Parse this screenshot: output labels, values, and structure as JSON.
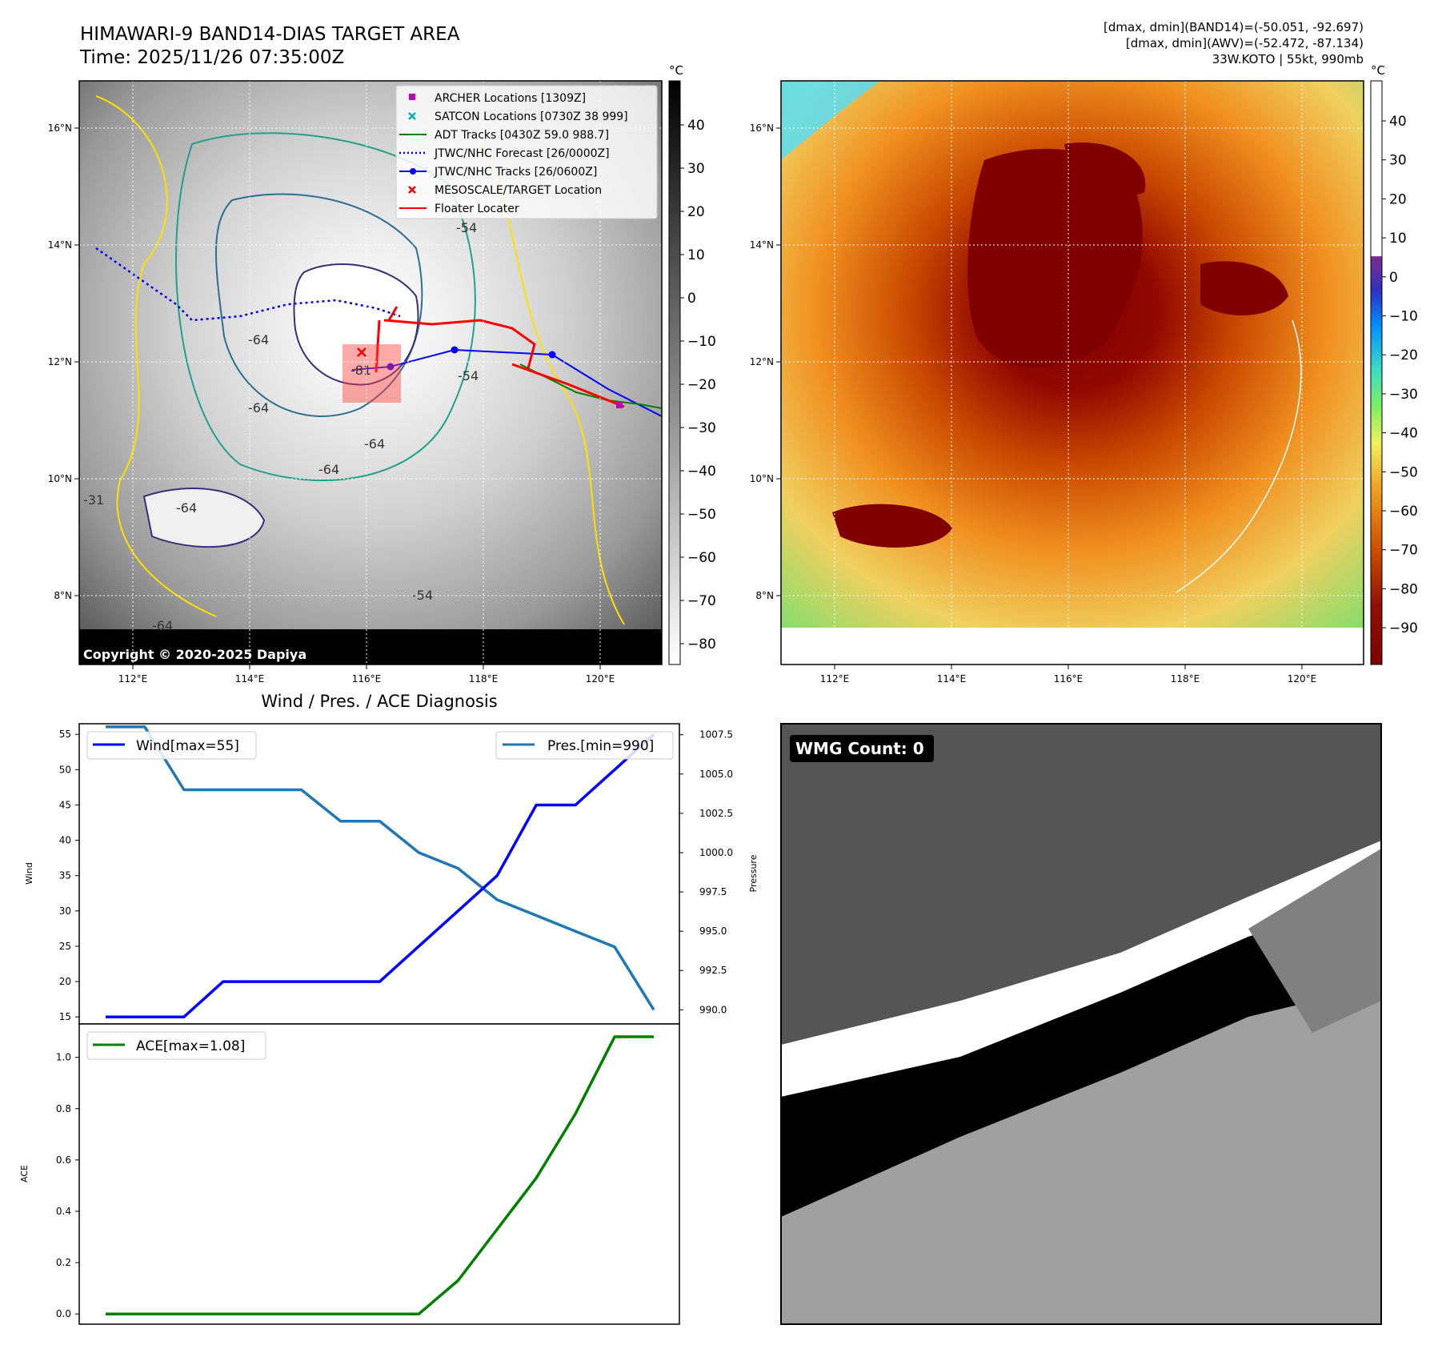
{
  "header": {
    "title_line1": "HIMAWARI-9 BAND14-DIAS TARGET AREA",
    "title_line2": "Time: 2025/11/26 07:35:00Z",
    "stats_line1": "[dmax, dmin](BAND14)=(-50.051, -92.697)",
    "stats_line2": "[dmax, dmin](AWV)=(-52.472, -87.134)",
    "stats_line3": "33W.KOTO | 55kt, 990mb"
  },
  "map": {
    "lon_ticks": [
      "112°E",
      "114°E",
      "116°E",
      "118°E",
      "120°E"
    ],
    "lat_ticks": [
      "16°N",
      "14°N",
      "12°N",
      "10°N",
      "8°N"
    ],
    "copyright": "Copyright © 2020-2025 Dapiya",
    "contour_labels": [
      "-81",
      "-64",
      "-64",
      "-64",
      "-64",
      "-64",
      "-64",
      "-54",
      "-54",
      "-31",
      "-54"
    ],
    "legend": [
      {
        "label": "ARCHER Locations [1309Z]",
        "color": "#c000c0",
        "marker": "square"
      },
      {
        "label": "SATCON Locations [0730Z 38 999]",
        "color": "#00b0b0",
        "marker": "x"
      },
      {
        "label": "ADT Tracks [0430Z 59.0 988.7]",
        "color": "#008000",
        "marker": "line"
      },
      {
        "label": "JTWC/NHC Forecast [26/0000Z]",
        "color": "#0000ff",
        "marker": "dotted"
      },
      {
        "label": "JTWC/NHC Tracks [26/0600Z]",
        "color": "#0000ff",
        "marker": "line-dot"
      },
      {
        "label": "MESOSCALE/TARGET Location",
        "color": "#ff0000",
        "marker": "x"
      },
      {
        "label": "Floater Locater",
        "color": "#ff0000",
        "marker": "line"
      }
    ],
    "colorbar_unit": "°C",
    "colorbar1_ticks": [
      "40",
      "30",
      "20",
      "10",
      "0",
      "−10",
      "−20",
      "−30",
      "−40",
      "−50",
      "−60",
      "−70",
      "−80"
    ],
    "colorbar2_ticks": [
      "40",
      "30",
      "20",
      "10",
      "0",
      "−10",
      "−20",
      "−30",
      "−40",
      "−50",
      "−60",
      "−70",
      "−80",
      "−90"
    ]
  },
  "wmg": {
    "label": "WMG Count: 0"
  },
  "colors": {
    "wind": "#0000ff",
    "pressure": "#1f77b4",
    "ace": "#008000"
  },
  "chart_data": [
    {
      "type": "line",
      "title": "Wind / Pres. / ACE Diagnosis",
      "xlabel": "",
      "ylabel": "Wind",
      "ylabel_right": "Pressure",
      "ylim": [
        14,
        56.5
      ],
      "ylim_right": [
        989.1,
        1008.2
      ],
      "yticks": [
        15,
        20,
        25,
        30,
        35,
        40,
        45,
        50,
        55
      ],
      "yticks_right": [
        990.0,
        992.5,
        995.0,
        997.5,
        1000.0,
        1002.5,
        1005.0,
        1007.5
      ],
      "ytick_labels_right": [
        "990.0",
        "992.5",
        "995.0",
        "997.5",
        "1000.0",
        "1002.5",
        "1005.0",
        "1007.5"
      ],
      "x": [
        0,
        1,
        2,
        3,
        4,
        5,
        6,
        7,
        8,
        9,
        10,
        11,
        12,
        13,
        14
      ],
      "series": [
        {
          "name": "Wind[max=55]",
          "axis": "left",
          "values": [
            15,
            15,
            15,
            20,
            20,
            20,
            20,
            20,
            25,
            30,
            35,
            45,
            45,
            50,
            55
          ]
        },
        {
          "name": "Pres.[min=990]",
          "axis": "right",
          "values": [
            1008,
            1008,
            1004,
            1004,
            1004,
            1004,
            1002,
            1002,
            1000,
            999,
            997,
            996,
            995,
            994,
            990
          ]
        }
      ],
      "legend_position": "top"
    },
    {
      "type": "line",
      "title": "",
      "xlabel": "",
      "ylabel": "ACE",
      "ylim": [
        -0.04,
        1.13
      ],
      "yticks": [
        0.0,
        0.2,
        0.4,
        0.6,
        0.8,
        1.0
      ],
      "ytick_labels": [
        "0.0",
        "0.2",
        "0.4",
        "0.6",
        "0.8",
        "1.0"
      ],
      "x": [
        0,
        1,
        2,
        3,
        4,
        5,
        6,
        7,
        8,
        9,
        10,
        11,
        12,
        13,
        14
      ],
      "series": [
        {
          "name": "ACE[max=1.08]",
          "axis": "left",
          "values": [
            0,
            0,
            0,
            0,
            0,
            0,
            0,
            0,
            0,
            0.13,
            0.33,
            0.53,
            0.78,
            1.08,
            1.08
          ]
        }
      ],
      "legend_position": "top-left"
    }
  ]
}
